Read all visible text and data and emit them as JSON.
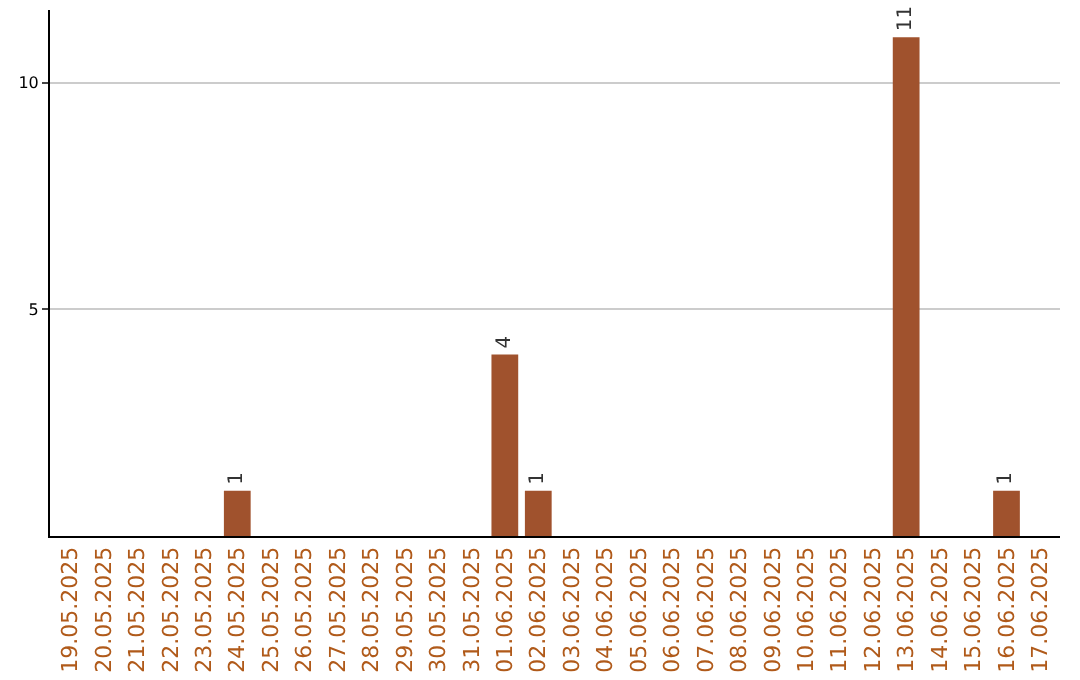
{
  "chart_data": {
    "type": "bar",
    "categories": [
      "19.05.2025",
      "20.05.2025",
      "21.05.2025",
      "22.05.2025",
      "23.05.2025",
      "24.05.2025",
      "25.05.2025",
      "26.05.2025",
      "27.05.2025",
      "28.05.2025",
      "29.05.2025",
      "30.05.2025",
      "31.05.2025",
      "01.06.2025",
      "02.06.2025",
      "03.06.2025",
      "04.06.2025",
      "05.06.2025",
      "06.06.2025",
      "07.06.2025",
      "08.06.2025",
      "09.06.2025",
      "10.06.2025",
      "11.06.2025",
      "12.06.2025",
      "13.06.2025",
      "14.06.2025",
      "15.06.2025",
      "16.06.2025",
      "17.06.2025"
    ],
    "values": [
      0,
      0,
      0,
      0,
      0,
      1,
      0,
      0,
      0,
      0,
      0,
      0,
      0,
      4,
      1,
      0,
      0,
      0,
      0,
      0,
      0,
      0,
      0,
      0,
      0,
      11,
      0,
      0,
      1,
      0
    ],
    "value_labels": [
      null,
      null,
      null,
      null,
      null,
      "1",
      null,
      null,
      null,
      null,
      null,
      null,
      null,
      "4",
      "1",
      null,
      null,
      null,
      null,
      null,
      null,
      null,
      null,
      null,
      null,
      "11",
      null,
      null,
      "1",
      null
    ],
    "color": "#a0522d",
    "ylim": [
      0,
      11.6
    ],
    "yticks": [
      5,
      10
    ],
    "grid": "y",
    "legend": false
  }
}
